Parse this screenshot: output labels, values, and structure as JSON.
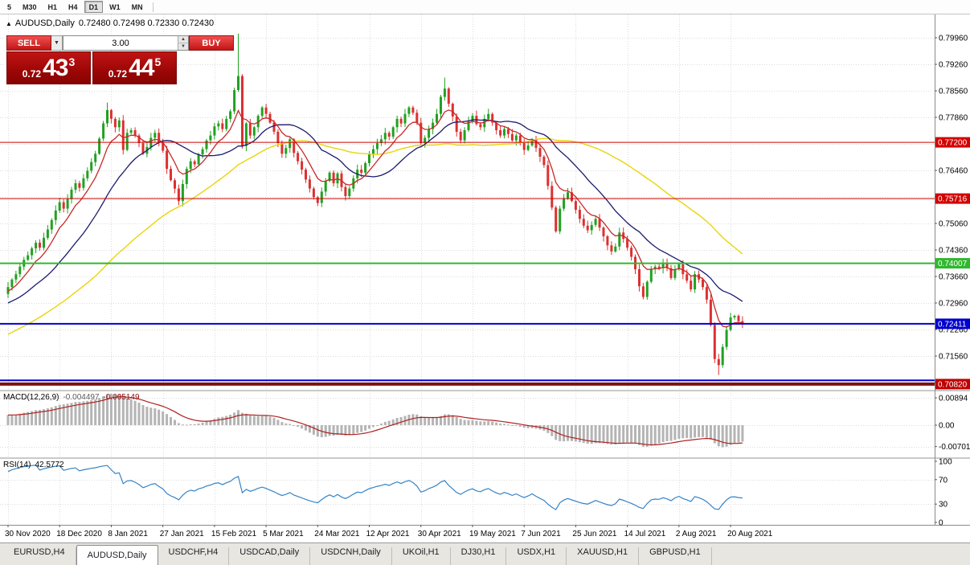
{
  "toolbar": {
    "timeframes": [
      {
        "label": "5",
        "active": false
      },
      {
        "label": "M30",
        "active": false
      },
      {
        "label": "H1",
        "active": false
      },
      {
        "label": "H4",
        "active": false
      },
      {
        "label": "D1",
        "active": true
      },
      {
        "label": "W1",
        "active": false
      },
      {
        "label": "MN",
        "active": false
      }
    ]
  },
  "chart_header": {
    "collapse_icon": "▲",
    "symbol_period": "AUDUSD,Daily",
    "ohlc": "0.72480 0.72498 0.72330 0.72430"
  },
  "trade_panel": {
    "sell_label": "SELL",
    "buy_label": "BUY",
    "volume": "3.00",
    "sell_price": {
      "prefix": "0.72",
      "big": "43",
      "sup": "3"
    },
    "buy_price": {
      "prefix": "0.72",
      "big": "44",
      "sup": "5"
    }
  },
  "chart_data": {
    "type": "candlestick",
    "symbol": "AUDUSD",
    "timeframe": "Daily",
    "ohlc_display": {
      "open": "0.72480",
      "high": "0.72498",
      "low": "0.72330",
      "close": "0.72430"
    },
    "closes": [
      0.7338,
      0.7358,
      0.7372,
      0.7392,
      0.741,
      0.7422,
      0.744,
      0.7455,
      0.7442,
      0.7468,
      0.749,
      0.7515,
      0.754,
      0.7562,
      0.7545,
      0.757,
      0.7595,
      0.7612,
      0.76,
      0.7625,
      0.7645,
      0.7668,
      0.769,
      0.773,
      0.777,
      0.7805,
      0.7782,
      0.776,
      0.7778,
      0.77,
      0.7745,
      0.7752,
      0.7738,
      0.7718,
      0.769,
      0.7708,
      0.7732,
      0.7745,
      0.772,
      0.7698,
      0.765,
      0.762,
      0.7598,
      0.7565,
      0.761,
      0.765,
      0.767,
      0.7662,
      0.7688,
      0.7702,
      0.7725,
      0.7738,
      0.7762,
      0.777,
      0.7755,
      0.7782,
      0.7802,
      0.7858,
      0.7895,
      0.771,
      0.777,
      0.7738,
      0.776,
      0.779,
      0.7812,
      0.7795,
      0.7772,
      0.7748,
      0.7718,
      0.769,
      0.7705,
      0.7728,
      0.7692,
      0.767,
      0.7648,
      0.7622,
      0.7598,
      0.7575,
      0.756,
      0.759,
      0.7618,
      0.764,
      0.7612,
      0.7638,
      0.7602,
      0.7578,
      0.7598,
      0.7625,
      0.7648,
      0.764,
      0.7665,
      0.7688,
      0.7702,
      0.7718,
      0.7728,
      0.7745,
      0.7735,
      0.776,
      0.7782,
      0.777,
      0.7795,
      0.7812,
      0.7798,
      0.7772,
      0.7718,
      0.7732,
      0.7755,
      0.7772,
      0.7795,
      0.784,
      0.7862,
      0.7822,
      0.7788,
      0.7748,
      0.7725,
      0.7752,
      0.7775,
      0.779,
      0.7768,
      0.776,
      0.7782,
      0.7795,
      0.7772,
      0.7752,
      0.7738,
      0.7755,
      0.7742,
      0.7725,
      0.7738,
      0.7718,
      0.77,
      0.7712,
      0.7728,
      0.7705,
      0.7682,
      0.766,
      0.7605,
      0.7548,
      0.7485,
      0.7545,
      0.7572,
      0.7588,
      0.7565,
      0.7542,
      0.7518,
      0.75,
      0.7488,
      0.7502,
      0.7518,
      0.7495,
      0.7472,
      0.7448,
      0.7432,
      0.7445,
      0.7482,
      0.7465,
      0.7442,
      0.7418,
      0.7385,
      0.734,
      0.7312,
      0.7352,
      0.7385,
      0.7392,
      0.7388,
      0.7402,
      0.7388,
      0.7362,
      0.7385,
      0.7398,
      0.7372,
      0.7355,
      0.7332,
      0.7372,
      0.7358,
      0.7338,
      0.7305,
      0.7238,
      0.7148,
      0.7132,
      0.718,
      0.7225,
      0.7258,
      0.7262,
      0.7248,
      0.7243
    ],
    "spikes": {
      "25": {
        "h": 0.7825
      },
      "58": {
        "h": 0.8007
      },
      "110": {
        "h": 0.7891
      },
      "179": {
        "l": 0.7106
      }
    },
    "price_ticks": [
      0.7996,
      0.7926,
      0.7856,
      0.7786,
      0.7716,
      0.7646,
      0.7576,
      0.7506,
      0.7436,
      0.7366,
      0.7296,
      0.7226,
      0.7156,
      0.7086
    ],
    "price_tick_labels": [
      "0.79960",
      "0.79260",
      "0.78560",
      "0.77860",
      "0.77160",
      "0.76460",
      "0.75760",
      "0.75060",
      "0.74360",
      "0.73660",
      "0.72960",
      "0.72260",
      "0.71560",
      "0.70860"
    ],
    "hlines": [
      {
        "price": 0.772,
        "label": "0.77200",
        "line": "#cc0000",
        "badge": "#d40000",
        "width": 1
      },
      {
        "price": 0.75716,
        "label": "0.75716",
        "line": "#cc0000",
        "badge": "#d40000",
        "width": 1
      },
      {
        "price": 0.74007,
        "label": "0.74007",
        "line": "#2eb82e",
        "badge": "#2eb82e",
        "width": 2
      },
      {
        "price": 0.72411,
        "label": "0.72411",
        "line": "#0000cc",
        "badge": "#0000cc",
        "width": 2
      },
      {
        "price": 0.7092,
        "label": "",
        "line": "#0000cc",
        "badge": "",
        "width": 2
      },
      {
        "price": 0.7082,
        "label": "0.70820",
        "line": "#7c1212",
        "badge": "#c00000",
        "width": 4
      }
    ],
    "date_labels": [
      "30 Nov 2020",
      "18 Dec 2020",
      "8 Jan 2021",
      "27 Jan 2021",
      "15 Feb 2021",
      "5 Mar 2021",
      "24 Mar 2021",
      "12 Apr 2021",
      "30 Apr 2021",
      "19 May 2021",
      "7 Jun 2021",
      "25 Jun 2021",
      "14 Jul 2021",
      "2 Aug 2021",
      "20 Aug 2021"
    ],
    "indicators": {
      "macd": {
        "name": "MACD(12,26,9)",
        "main": "-0.004497",
        "signal": "-0.005149",
        "axis_labels": [
          "0.00894",
          "0.00",
          "-0.00701"
        ],
        "axis_values": [
          0.00894,
          0,
          -0.00701
        ]
      },
      "rsi": {
        "name": "RSI(14)",
        "value": "42.5772",
        "axis_labels": [
          "100",
          "70",
          "30",
          "0"
        ],
        "axis_values": [
          100,
          70,
          30,
          0
        ],
        "levels": [
          70,
          30
        ]
      }
    },
    "colors": {
      "up": "#21a121",
      "down": "#dd3030",
      "ma_fast": "#c82828",
      "ma_mid": "#1a1a6e",
      "ma_slow": "#e8d50a",
      "macd_hist": "#b4b4b4",
      "macd_signal": "#b02020",
      "rsi": "#3583c8",
      "grid": "#dcdcdc"
    }
  },
  "tabs": [
    {
      "label": "EURUSD,H4",
      "active": false
    },
    {
      "label": "AUDUSD,Daily",
      "active": true
    },
    {
      "label": "USDCHF,H4",
      "active": false
    },
    {
      "label": "USDCAD,Daily",
      "active": false
    },
    {
      "label": "USDCNH,Daily",
      "active": false
    },
    {
      "label": "UKOil,H1",
      "active": false
    },
    {
      "label": "DJ30,H1",
      "active": false
    },
    {
      "label": "USDX,H1",
      "active": false
    },
    {
      "label": "XAUUSD,H1",
      "active": false
    },
    {
      "label": "GBPUSD,H1",
      "active": false
    }
  ]
}
